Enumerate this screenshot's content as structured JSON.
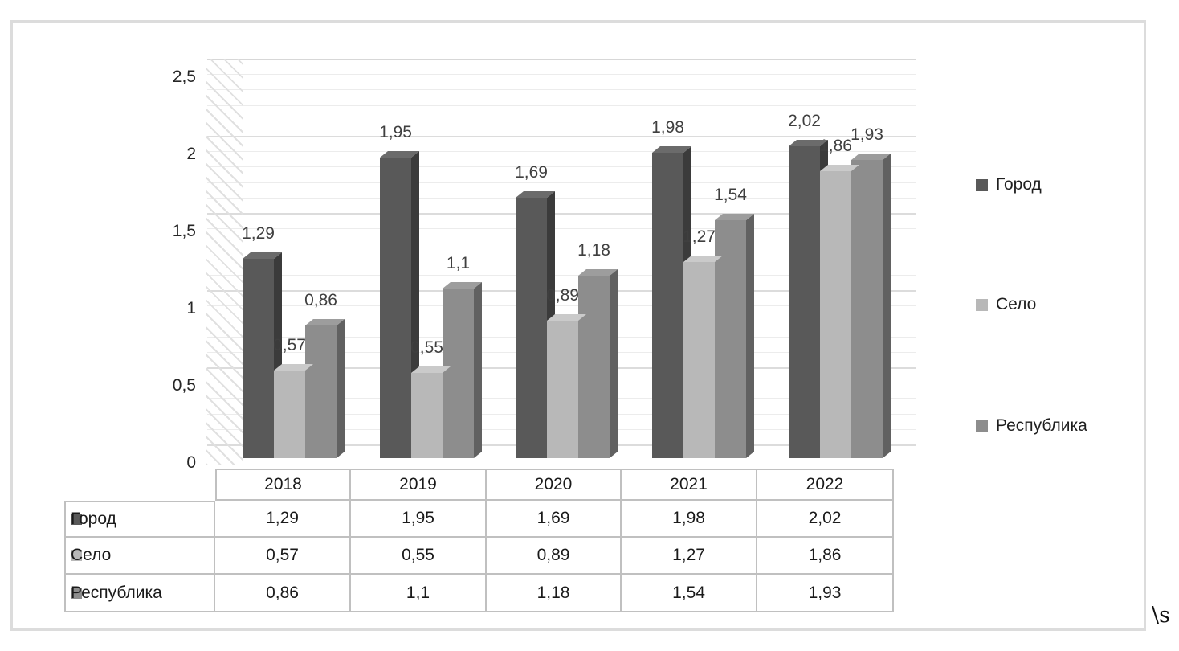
{
  "chart_data": {
    "type": "bar",
    "effect": "3d-column",
    "title": "",
    "categories": [
      "2018",
      "2019",
      "2020",
      "2021",
      "2022"
    ],
    "series": [
      {
        "name": "Город",
        "values": [
          1.29,
          1.95,
          1.69,
          1.98,
          2.02
        ],
        "labels": [
          "1,29",
          "1,95",
          "1,69",
          "1,98",
          "2,02"
        ],
        "color": "#595959",
        "side_color": "#3b3b3b",
        "top_color": "#6b6b6b"
      },
      {
        "name": "Село",
        "values": [
          0.57,
          0.55,
          0.89,
          1.27,
          1.86
        ],
        "labels": [
          "0,57",
          "0,55",
          "0,89",
          "1,27",
          "1,86"
        ],
        "color": "#b8b8b8",
        "side_color": "#8a8a8a",
        "top_color": "#cacaca"
      },
      {
        "name": "Республика",
        "values": [
          0.86,
          1.1,
          1.18,
          1.54,
          1.93
        ],
        "labels": [
          "0,86",
          "1,1",
          "1,18",
          "1,54",
          "1,93"
        ],
        "color": "#8d8d8d",
        "side_color": "#616161",
        "top_color": "#9d9d9d"
      }
    ],
    "ylim": [
      0,
      2.5
    ],
    "yticks": [
      {
        "v": 0,
        "label": "0"
      },
      {
        "v": 0.5,
        "label": "0,5"
      },
      {
        "v": 1,
        "label": "1"
      },
      {
        "v": 1.5,
        "label": "1,5"
      },
      {
        "v": 2,
        "label": "2"
      },
      {
        "v": 2.5,
        "label": "2,5"
      }
    ],
    "grid": {
      "orientation": "horizontal",
      "minor_step": 0.1,
      "major_step": 0.5
    },
    "legend_position": "right",
    "data_table_shown": true
  },
  "artifact": {
    "text": "\\s"
  }
}
